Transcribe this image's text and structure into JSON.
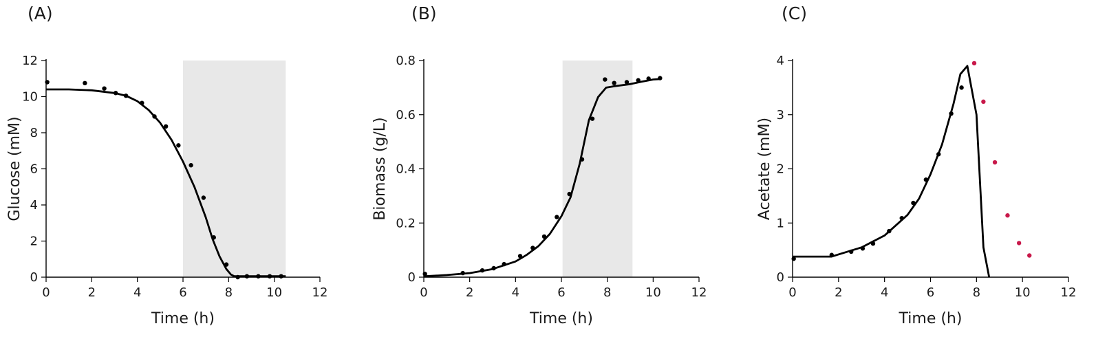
{
  "chart_data": [
    {
      "type": "scatter",
      "panel_label": "(A)",
      "xlabel": "Time (h)",
      "ylabel": "Glucose (mM)",
      "xlim": [
        0,
        12
      ],
      "ylim": [
        0,
        12
      ],
      "xticks": [
        "0",
        "2",
        "4",
        "6",
        "8",
        "10",
        "12"
      ],
      "yticks": [
        "0",
        "2",
        "4",
        "6",
        "8",
        "10",
        "12"
      ],
      "shaded_region": [
        6,
        10.5
      ],
      "shade_color": "#e8e8e8",
      "series": [
        {
          "kind": "points",
          "color": "#000000",
          "x": [
            0.05,
            1.7,
            2.55,
            3.05,
            3.5,
            4.2,
            4.75,
            5.25,
            5.8,
            6.35,
            6.9,
            7.35,
            7.9,
            8.4,
            8.8,
            9.3,
            9.8,
            10.3
          ],
          "y": [
            10.8,
            10.75,
            10.45,
            10.2,
            10.05,
            9.65,
            8.9,
            8.35,
            7.3,
            6.2,
            4.4,
            2.2,
            0.7,
            0.0,
            0.05,
            0.05,
            0.05,
            0.05
          ]
        },
        {
          "kind": "line",
          "color": "#000000",
          "x": [
            0,
            1,
            2,
            3,
            3.5,
            4,
            4.5,
            5,
            5.5,
            6,
            6.5,
            7,
            7.3,
            7.6,
            7.9,
            8.1,
            8.25,
            9,
            10,
            10.5
          ],
          "y": [
            10.4,
            10.4,
            10.35,
            10.2,
            10.05,
            9.75,
            9.25,
            8.55,
            7.6,
            6.4,
            5.0,
            3.3,
            2.1,
            1.15,
            0.45,
            0.15,
            0.05,
            0.05,
            0.05,
            0.05
          ]
        }
      ]
    },
    {
      "type": "scatter",
      "panel_label": "(B)",
      "xlabel": "Time (h)",
      "ylabel": "Biomass (g/L)",
      "xlim": [
        0,
        12
      ],
      "ylim": [
        0,
        0.8
      ],
      "xticks": [
        "0",
        "2",
        "4",
        "6",
        "8",
        "10",
        "12"
      ],
      "yticks": [
        "0",
        "0.2",
        "0.4",
        "0.6",
        "0.8"
      ],
      "shaded_region": [
        6.05,
        9.1
      ],
      "shade_color": "#e8e8e8",
      "series": [
        {
          "kind": "points",
          "color": "#000000",
          "x": [
            0.05,
            1.7,
            2.55,
            3.05,
            3.5,
            4.2,
            4.75,
            5.25,
            5.8,
            6.35,
            6.9,
            7.35,
            7.9,
            8.3,
            8.85,
            9.35,
            9.8,
            10.3
          ],
          "y": [
            0.012,
            0.015,
            0.025,
            0.033,
            0.048,
            0.078,
            0.108,
            0.15,
            0.222,
            0.307,
            0.435,
            0.585,
            0.73,
            0.717,
            0.72,
            0.727,
            0.733,
            0.735
          ],
          "labels": [
            "",
            "",
            "",
            "",
            "",
            "",
            "",
            "",
            "",
            "",
            "",
            "",
            "",
            "",
            "",
            "",
            "",
            ""
          ]
        },
        {
          "kind": "line",
          "color": "#000000",
          "x": [
            0,
            1,
            2,
            3,
            4,
            4.5,
            5,
            5.5,
            6,
            6.4,
            6.8,
            7.2,
            7.6,
            7.95,
            8.3,
            9,
            9.5,
            10,
            10.35
          ],
          "y": [
            0.003,
            0.008,
            0.015,
            0.03,
            0.058,
            0.083,
            0.115,
            0.16,
            0.225,
            0.295,
            0.42,
            0.58,
            0.665,
            0.7,
            0.705,
            0.713,
            0.722,
            0.73,
            0.732
          ]
        }
      ]
    },
    {
      "type": "scatter",
      "panel_label": "(C)",
      "xlabel": "Time (h)",
      "ylabel": "Acetate (mM)",
      "xlim": [
        0,
        12
      ],
      "ylim": [
        0,
        4
      ],
      "xticks": [
        "0",
        "2",
        "4",
        "6",
        "8",
        "10",
        "12"
      ],
      "yticks": [
        "0",
        "1",
        "2",
        "3",
        "4"
      ],
      "series": [
        {
          "kind": "points",
          "color": "#000000",
          "x": [
            0.05,
            1.7,
            2.55,
            3.05,
            3.5,
            4.2,
            4.75,
            5.25,
            5.8,
            6.35,
            6.9,
            7.35
          ],
          "y": [
            0.34,
            0.41,
            0.47,
            0.53,
            0.62,
            0.85,
            1.09,
            1.37,
            1.8,
            2.27,
            3.02,
            3.5
          ]
        },
        {
          "kind": "points",
          "color": "#c8184a",
          "x": [
            7.9,
            8.3,
            8.8,
            9.35,
            9.85,
            10.3
          ],
          "y": [
            3.95,
            3.24,
            2.12,
            1.14,
            0.63,
            0.4
          ]
        },
        {
          "kind": "line",
          "color": "#000000",
          "x": [
            0,
            1.7,
            2,
            3,
            4,
            5,
            5.5,
            6,
            6.5,
            7,
            7.3,
            7.6,
            8.0,
            8.3,
            8.55
          ],
          "y": [
            0.38,
            0.38,
            0.42,
            0.55,
            0.77,
            1.15,
            1.45,
            1.9,
            2.45,
            3.2,
            3.75,
            3.9,
            3.0,
            0.55,
            0.0
          ]
        }
      ]
    }
  ]
}
